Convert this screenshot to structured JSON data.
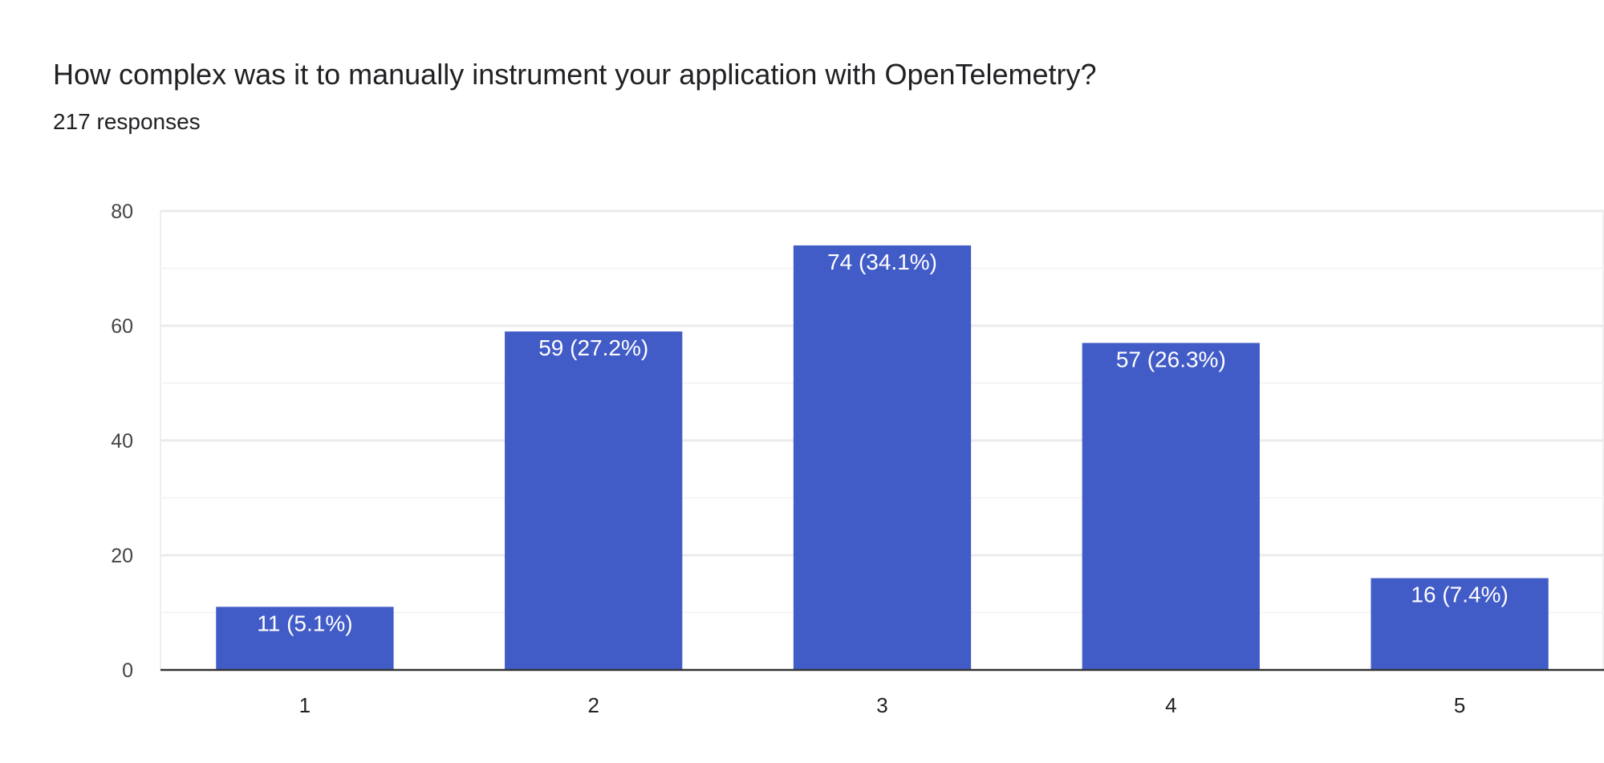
{
  "header": {
    "title": "How complex was it to manually instrument your application with OpenTelemetry?",
    "subtitle": "217 responses"
  },
  "chart_data": {
    "type": "bar",
    "title": "How complex was it to manually instrument your application with OpenTelemetry?",
    "subtitle": "217 responses",
    "xlabel": "",
    "ylabel": "",
    "categories": [
      "1",
      "2",
      "3",
      "4",
      "5"
    ],
    "values": [
      11,
      59,
      74,
      57,
      16
    ],
    "data_labels": [
      "11 (5.1%)",
      "59 (27.2%)",
      "74 (34.1%)",
      "57 (26.3%)",
      "16 (7.4%)"
    ],
    "ylim": [
      0,
      80
    ],
    "yticks": [
      0,
      20,
      40,
      60,
      80
    ],
    "minor_grid_step": 10,
    "grid": true,
    "legend": "none",
    "colors": {
      "bar": "#425cc7",
      "grid": "#eeeeee",
      "axis": "#333333",
      "label": "#ffffff"
    }
  }
}
